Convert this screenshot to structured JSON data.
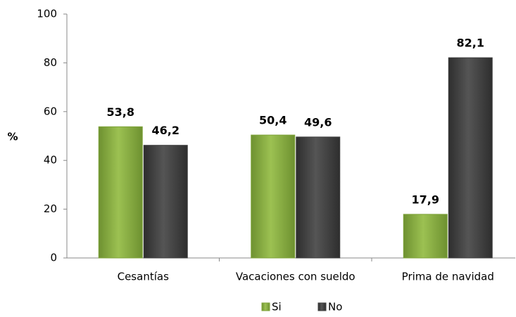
{
  "chart_data": {
    "type": "bar",
    "y_label": "%",
    "categories": [
      "Cesantías",
      "Vacaciones con sueldo",
      "Prima de navidad"
    ],
    "series": [
      {
        "name": "Si",
        "color": "#7fa33a",
        "values": [
          53.8,
          50.4,
          17.9
        ],
        "value_labels": [
          "53,8",
          "50,4",
          "17,9"
        ]
      },
      {
        "name": "No",
        "color": "#3f3f3f",
        "values": [
          46.2,
          49.6,
          82.1
        ],
        "value_labels": [
          "46,2",
          "49,6",
          "82,1"
        ]
      }
    ],
    "ylim": [
      0,
      100
    ],
    "yticks": [
      0,
      20,
      40,
      60,
      80,
      100
    ],
    "grid": false,
    "legend": "bottom"
  }
}
